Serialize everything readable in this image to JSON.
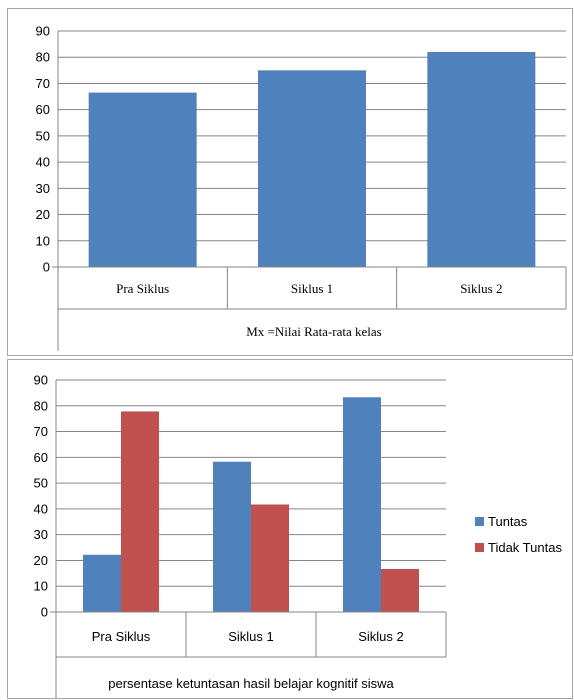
{
  "chart_data": [
    {
      "type": "bar",
      "categories": [
        "Pra Siklus",
        "Siklus 1",
        "Siklus 2"
      ],
      "series": [
        {
          "values": [
            66.5,
            75,
            82
          ],
          "color": "#4f81bd"
        }
      ],
      "title": "",
      "xlabel": "Mx =Nilai Rata-rata kelas",
      "ylabel": "",
      "ylim": [
        0,
        90
      ],
      "yticks": [
        0,
        10,
        20,
        30,
        40,
        50,
        60,
        70,
        80,
        90
      ],
      "grid": true,
      "legend": "none"
    },
    {
      "type": "bar",
      "categories": [
        "Pra Siklus",
        "Siklus 1",
        "Siklus 2"
      ],
      "series": [
        {
          "name": "Tuntas",
          "values": [
            22.2,
            58.3,
            83.3
          ],
          "color": "#4f81bd"
        },
        {
          "name": "Tidak Tuntas",
          "values": [
            77.8,
            41.7,
            16.7
          ],
          "color": "#c0504d"
        }
      ],
      "title": "",
      "xlabel": "persentase ketuntasan hasil belajar kognitif siswa",
      "ylabel": "",
      "ylim": [
        0,
        90
      ],
      "yticks": [
        0,
        10,
        20,
        30,
        40,
        50,
        60,
        70,
        80,
        90
      ],
      "grid": true,
      "legend": "right"
    }
  ]
}
